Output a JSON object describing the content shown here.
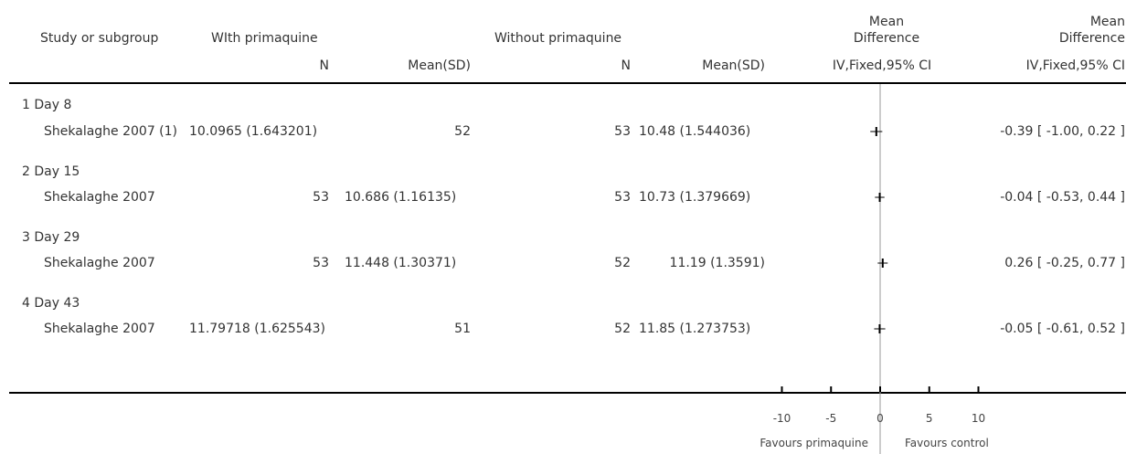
{
  "header": {
    "study_col": "Study or subgroup",
    "with_group": "WIth primaquine",
    "without_group": "Without primaquine",
    "md_plot_top": "Mean",
    "md_plot_bottom": "Difference",
    "md_text_top": "Mean",
    "md_text_bottom": "Difference",
    "n_label": "N",
    "mean_label": "Mean(SD)",
    "method_plot": "IV,Fixed,95% CI",
    "method_text": "IV,Fixed,95% CI"
  },
  "chart_data": {
    "type": "forest",
    "subgroups": [
      {
        "label": "1 Day 8",
        "study": "Shekalaghe 2007 (1)",
        "with_mean_sd": "10.0965 (1.643201)",
        "with_n": "52",
        "without_n": "53",
        "without_mean_sd": "10.48 (1.544036)",
        "md": -0.39,
        "ci_low": -1.0,
        "ci_high": 0.22,
        "md_text": "-0.39 [ -1.00, 0.22 ]"
      },
      {
        "label": "2 Day 15",
        "study": "Shekalaghe 2007",
        "with_n": "53",
        "with_mean_sd": "10.686 (1.16135)",
        "without_n": "53",
        "without_mean_sd": "10.73 (1.379669)",
        "md": -0.04,
        "ci_low": -0.53,
        "ci_high": 0.44,
        "md_text": "-0.04 [ -0.53, 0.44 ]"
      },
      {
        "label": "3 Day 29",
        "study": "Shekalaghe 2007",
        "with_n": "53",
        "with_mean_sd": "11.448 (1.30371)",
        "without_n": "52",
        "without_mean_sd": "11.19 (1.3591)",
        "md": 0.26,
        "ci_low": -0.25,
        "ci_high": 0.77,
        "md_text": "0.26 [ -0.25, 0.77 ]"
      },
      {
        "label": "4 Day 43",
        "study": "Shekalaghe 2007",
        "with_mean_sd": "11.79718 (1.625543)",
        "with_n": "51",
        "without_n": "52",
        "without_mean_sd": "11.85 (1.273753)",
        "md": -0.05,
        "ci_low": -0.61,
        "ci_high": 0.52,
        "md_text": "-0.05 [ -0.61, 0.52 ]"
      }
    ],
    "x_axis": {
      "ticks": [
        -10,
        -5,
        0,
        5,
        10
      ],
      "tick_labels": [
        "-10",
        "-5",
        "0",
        "5",
        "10"
      ],
      "xlim": [
        -10,
        10
      ]
    },
    "favours_left": "Favours primaquine",
    "favours_right": "Favours control"
  },
  "colors": {
    "line": "#000000",
    "zero_line": "#999999",
    "text": "#333333"
  }
}
